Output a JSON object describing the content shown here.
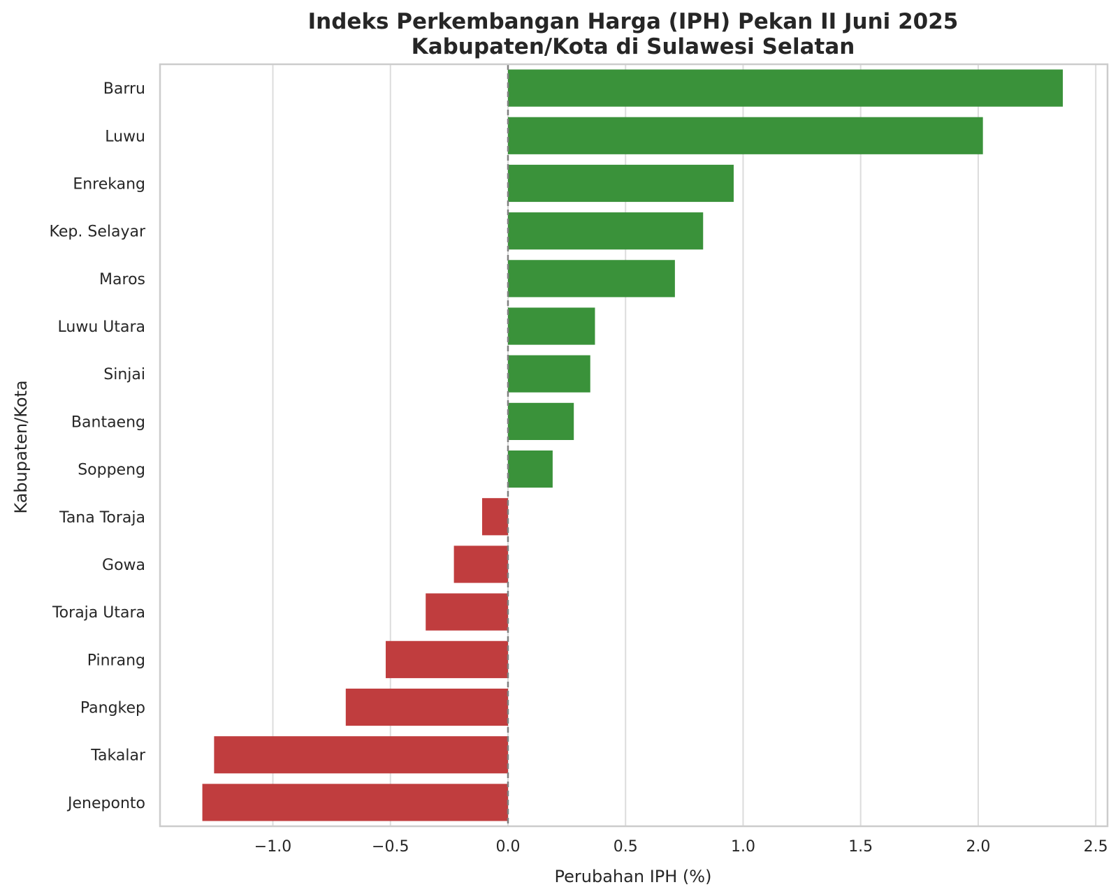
{
  "chart_data": {
    "type": "bar",
    "orientation": "horizontal",
    "title": [
      "Indeks Perkembangan Harga (IPH) Pekan II Juni 2025",
      "Kabupaten/Kota di Sulawesi Selatan"
    ],
    "xlabel": "Perubahan IPH (%)",
    "ylabel": "Kabupaten/Kota",
    "xlim": [
      -1.48,
      2.55
    ],
    "xticks": [
      -1.0,
      -0.5,
      0.0,
      0.5,
      1.0,
      1.5,
      2.0,
      2.5
    ],
    "xtick_labels": [
      "−1.0",
      "−0.5",
      "0.0",
      "0.5",
      "1.0",
      "1.5",
      "2.0",
      "2.5"
    ],
    "grid": "vertical",
    "reference_line": 0.0,
    "colors": {
      "positive": "#3a923a",
      "negative": "#c03d3e",
      "grid": "#dcdcdc",
      "frame": "#cccccc",
      "reference": "#808080"
    },
    "categories": [
      "Barru",
      "Luwu",
      "Enrekang",
      "Kep. Selayar",
      "Maros",
      "Luwu Utara",
      "Sinjai",
      "Bantaeng",
      "Soppeng",
      "Tana Toraja",
      "Gowa",
      "Toraja Utara",
      "Pinrang",
      "Pangkep",
      "Takalar",
      "Jeneponto"
    ],
    "values": [
      2.36,
      2.02,
      0.96,
      0.83,
      0.71,
      0.37,
      0.35,
      0.28,
      0.19,
      -0.11,
      -0.23,
      -0.35,
      -0.52,
      -0.69,
      -1.25,
      -1.3
    ]
  }
}
